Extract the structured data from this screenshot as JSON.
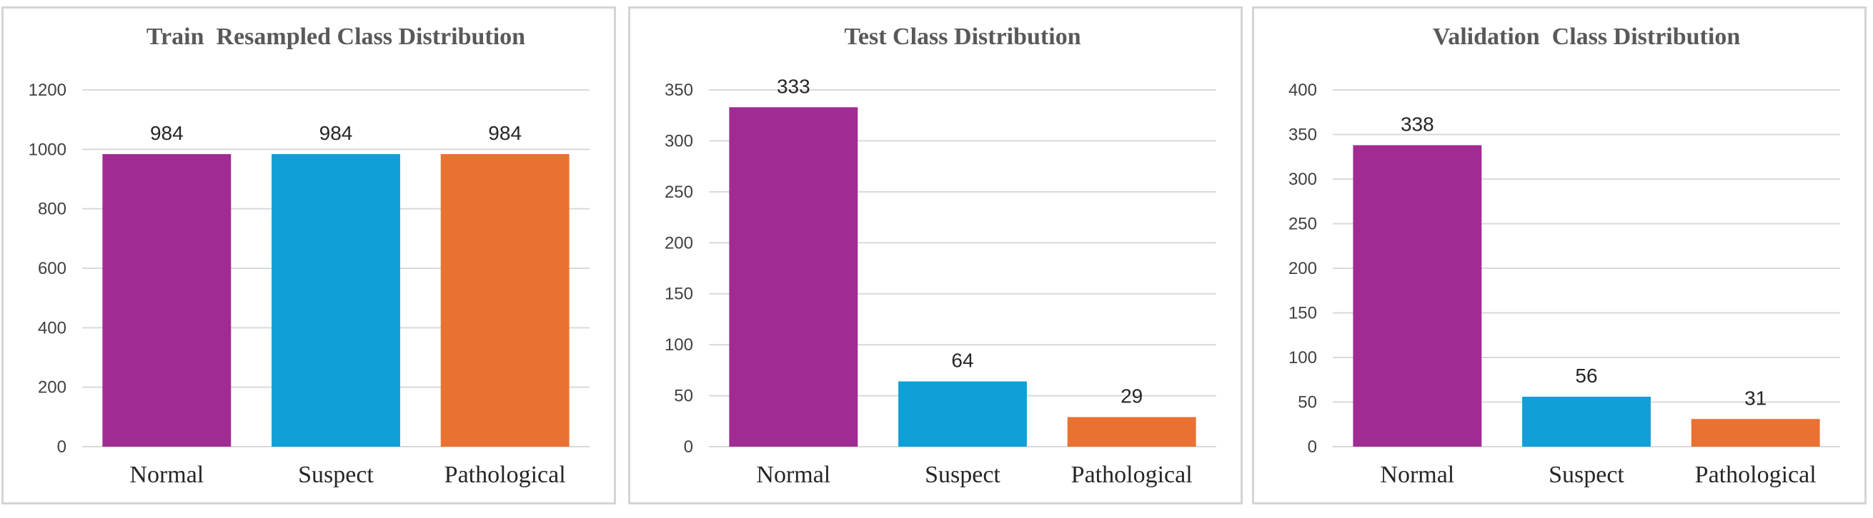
{
  "chart_data": [
    {
      "type": "bar",
      "title": "Train  Resampled Class Distribution",
      "xlabel": "",
      "ylabel": "",
      "categories": [
        "Normal",
        "Suspect",
        "Pathological"
      ],
      "values": [
        984,
        984,
        984
      ],
      "ylim": [
        0,
        1200
      ],
      "yticks": [
        0,
        200,
        400,
        600,
        800,
        1000,
        1200
      ],
      "grid": true,
      "colors": [
        "#A02B93",
        "#119FD8",
        "#E97132"
      ]
    },
    {
      "type": "bar",
      "title": "Test Class Distribution",
      "xlabel": "",
      "ylabel": "",
      "categories": [
        "Normal",
        "Suspect",
        "Pathological"
      ],
      "values": [
        333,
        64,
        29
      ],
      "ylim": [
        0,
        350
      ],
      "yticks": [
        0,
        50,
        100,
        150,
        200,
        250,
        300,
        350
      ],
      "grid": true,
      "colors": [
        "#A02B93",
        "#119FD8",
        "#E97132"
      ]
    },
    {
      "type": "bar",
      "title": "Validation  Class Distribution",
      "xlabel": "",
      "ylabel": "",
      "categories": [
        "Normal",
        "Suspect",
        "Pathological"
      ],
      "values": [
        338,
        56,
        31
      ],
      "ylim": [
        0,
        400
      ],
      "yticks": [
        0,
        50,
        100,
        150,
        200,
        250,
        300,
        350,
        400
      ],
      "grid": true,
      "colors": [
        "#A02B93",
        "#119FD8",
        "#E97132"
      ]
    }
  ]
}
